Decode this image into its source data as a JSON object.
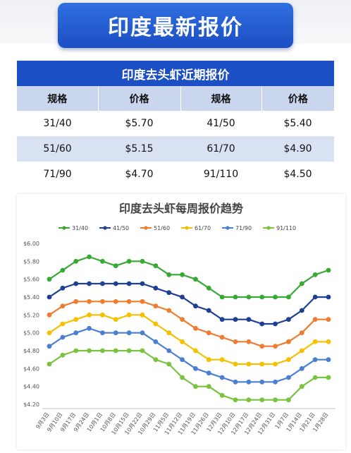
{
  "header": {
    "title": "印度最新报价"
  },
  "price_table": {
    "title": "印度去头虾近期报价",
    "headers": [
      "规格",
      "价格",
      "规格",
      "价格"
    ],
    "rows": [
      [
        "31/40",
        "$5.70",
        "41/50",
        "$5.40"
      ],
      [
        "51/60",
        "$5.15",
        "61/70",
        "$4.90"
      ],
      [
        "71/90",
        "$4.70",
        "91/110",
        "$4.50"
      ]
    ]
  },
  "chart_data": {
    "type": "line",
    "title": "印度去头虾每周报价趋势",
    "xlabel": "",
    "ylabel": "",
    "ylim": [
      4.2,
      6.0
    ],
    "yticks": [
      "$6.00",
      "$5.80",
      "$5.60",
      "$5.40",
      "$5.20",
      "$5.00",
      "$4.80",
      "$4.60",
      "$4.40",
      "$4.20"
    ],
    "grid": false,
    "legend_position": "top",
    "categories": [
      "9月3日",
      "9月10日",
      "9月17日",
      "9月24日",
      "10月1日",
      "10月8日",
      "10月15日",
      "10月22日",
      "10月29日",
      "11月5日",
      "11月12日",
      "11月19日",
      "11月26日",
      "12月3日",
      "12月10日",
      "12月17日",
      "12月24日",
      "12月31日",
      "1月7日",
      "1月14日",
      "1月21日",
      "1月28日"
    ],
    "series": [
      {
        "name": "31/40",
        "color": "#39a935",
        "values": [
          5.6,
          5.7,
          5.8,
          5.85,
          5.8,
          5.75,
          5.8,
          5.8,
          5.75,
          5.65,
          5.65,
          5.6,
          5.5,
          5.4,
          5.4,
          5.4,
          5.4,
          5.4,
          5.4,
          5.55,
          5.65,
          5.7
        ]
      },
      {
        "name": "41/50",
        "color": "#1f3f95",
        "values": [
          5.4,
          5.5,
          5.55,
          5.55,
          5.55,
          5.55,
          5.55,
          5.55,
          5.5,
          5.45,
          5.4,
          5.3,
          5.25,
          5.15,
          5.15,
          5.15,
          5.1,
          5.1,
          5.15,
          5.25,
          5.4,
          5.4
        ]
      },
      {
        "name": "51/60",
        "color": "#ee7d31",
        "values": [
          5.2,
          5.3,
          5.35,
          5.35,
          5.35,
          5.35,
          5.35,
          5.35,
          5.3,
          5.25,
          5.15,
          5.05,
          5.0,
          4.95,
          4.9,
          4.9,
          4.85,
          4.85,
          4.9,
          5.0,
          5.15,
          5.15
        ]
      },
      {
        "name": "61/70",
        "color": "#f5c000",
        "values": [
          5.0,
          5.1,
          5.15,
          5.2,
          5.2,
          5.15,
          5.2,
          5.2,
          5.1,
          5.0,
          4.9,
          4.8,
          4.7,
          4.7,
          4.65,
          4.65,
          4.65,
          4.65,
          4.7,
          4.8,
          4.9,
          4.9
        ]
      },
      {
        "name": "71/90",
        "color": "#4a7fd4",
        "values": [
          4.85,
          4.95,
          5.0,
          5.05,
          5.0,
          5.0,
          5.0,
          5.0,
          4.9,
          4.8,
          4.7,
          4.6,
          4.55,
          4.5,
          4.45,
          4.45,
          4.45,
          4.45,
          4.5,
          4.6,
          4.7,
          4.7
        ]
      },
      {
        "name": "91/110",
        "color": "#7cc241",
        "values": [
          4.65,
          4.75,
          4.8,
          4.8,
          4.8,
          4.8,
          4.8,
          4.8,
          4.7,
          4.65,
          4.5,
          4.4,
          4.4,
          4.3,
          4.25,
          4.25,
          4.25,
          4.25,
          4.25,
          4.4,
          4.5,
          4.5
        ]
      }
    ]
  }
}
